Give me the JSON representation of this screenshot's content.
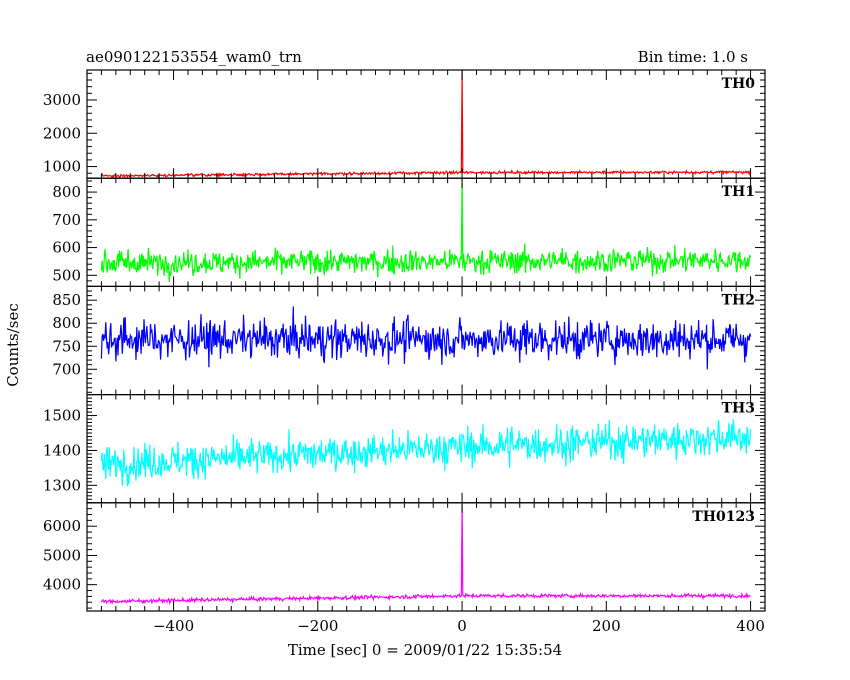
{
  "chart_data": {
    "type": "line",
    "title": "ae090122153554_wam0_trn",
    "subtitle": "Bin time: 1.0 s",
    "xlabel": "Time [sec] 0 = 2009/01/22 15:35:54",
    "ylabel": "Counts/sec",
    "xlim": [
      -520,
      420
    ],
    "x_ticks": [
      -400,
      -200,
      0,
      200,
      400
    ],
    "x_tick_labels": [
      "−400",
      "−200",
      "0",
      "200",
      "400"
    ],
    "x_range": [
      -500,
      400
    ],
    "bin_time": 1.0,
    "grid": false,
    "panels": [
      {
        "label": "TH0",
        "color": "#ff0000",
        "ylim": [
          650,
          3900
        ],
        "y_ticks": [
          1000,
          2000,
          3000
        ],
        "y_tick_labels": [
          "1000",
          "2000",
          "3000"
        ],
        "baseline": [
          [
            -500,
            720
          ],
          [
            -100,
            800
          ],
          [
            0,
            820
          ],
          [
            400,
            830
          ]
        ],
        "noise": 35,
        "spikes": [
          {
            "x": 0,
            "y": 3900
          }
        ]
      },
      {
        "label": "TH1",
        "color": "#00ff00",
        "ylim": [
          460,
          850
        ],
        "y_ticks": [
          500,
          600,
          700,
          800
        ],
        "y_tick_labels": [
          "500",
          "600",
          "700",
          "800"
        ],
        "baseline": [
          [
            -500,
            545
          ],
          [
            400,
            555
          ]
        ],
        "noise": 40,
        "spikes": [
          {
            "x": 0,
            "y": 850
          }
        ]
      },
      {
        "label": "TH2",
        "color": "#0000ff",
        "ylim": [
          645,
          880
        ],
        "y_ticks": [
          700,
          750,
          800,
          850
        ],
        "y_tick_labels": [
          "700",
          "750",
          "800",
          "850"
        ],
        "baseline": [
          [
            -500,
            765
          ],
          [
            400,
            765
          ]
        ],
        "noise": 38,
        "spikes": []
      },
      {
        "label": "TH3",
        "color": "#00ffff",
        "ylim": [
          1250,
          1560
        ],
        "y_ticks": [
          1300,
          1400,
          1500
        ],
        "y_tick_labels": [
          "1300",
          "1400",
          "1500"
        ],
        "baseline": [
          [
            -500,
            1360
          ],
          [
            -200,
            1390
          ],
          [
            0,
            1410
          ],
          [
            400,
            1440
          ]
        ],
        "noise": 45,
        "spikes": []
      },
      {
        "label": "TH0123",
        "color": "#ff00ff",
        "ylim": [
          3100,
          6800
        ],
        "y_ticks": [
          4000,
          5000,
          6000
        ],
        "y_tick_labels": [
          "4000",
          "5000",
          "6000"
        ],
        "baseline": [
          [
            -500,
            3420
          ],
          [
            -100,
            3580
          ],
          [
            0,
            3620
          ],
          [
            400,
            3620
          ]
        ],
        "noise": 55,
        "spikes": [
          {
            "x": 0,
            "y": 6750
          }
        ]
      }
    ]
  }
}
